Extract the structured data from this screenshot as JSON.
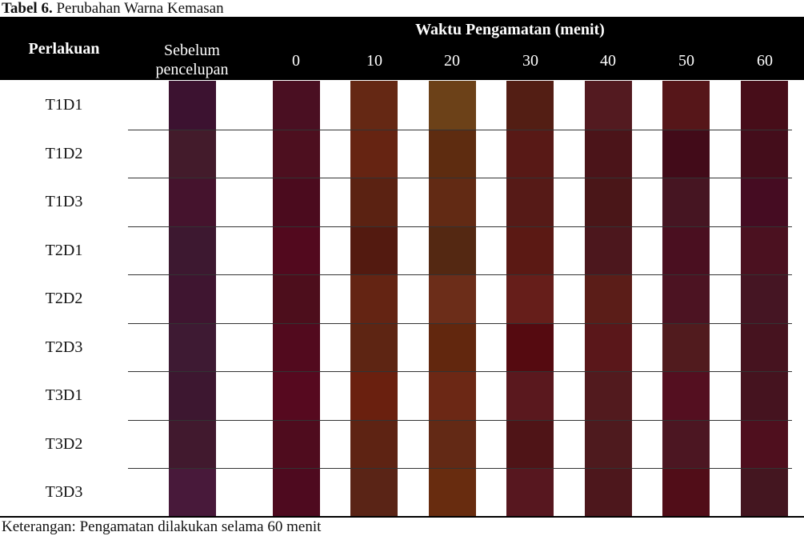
{
  "caption": {
    "label": "Tabel 6.",
    "text": " Perubahan Warna Kemasan"
  },
  "header": {
    "perlakuan": "Perlakuan",
    "waktu": "Waktu Pengamatan (menit)",
    "sebelum_line1": "Sebelum",
    "sebelum_line2": "pencelupan",
    "minutes": [
      "0",
      "10",
      "20",
      "30",
      "40",
      "50",
      "60"
    ]
  },
  "rows": [
    {
      "label": "T1D1",
      "colors": [
        "#3c1230",
        "#4a0f22",
        "#652814",
        "#6c4118",
        "#531e14",
        "#531a20",
        "#561619",
        "#470d19"
      ]
    },
    {
      "label": "T1D2",
      "colors": [
        "#431b2b",
        "#4d0f1f",
        "#662412",
        "#5e2c10",
        "#581916",
        "#4b1419",
        "#420b19",
        "#440d1b"
      ]
    },
    {
      "label": "T1D3",
      "colors": [
        "#45132d",
        "#4b0b1e",
        "#5b2212",
        "#622a14",
        "#561a17",
        "#4a1618",
        "#461522",
        "#450c22"
      ]
    },
    {
      "label": "T2D1",
      "colors": [
        "#3d1830",
        "#52091e",
        "#531a10",
        "#542812",
        "#5b1914",
        "#4c171d",
        "#4a0f20",
        "#4b1120"
      ]
    },
    {
      "label": "T2D2",
      "colors": [
        "#3f1530",
        "#4d0e1c",
        "#642413",
        "#6c2d19",
        "#661e1a",
        "#5b1d18",
        "#4c1322",
        "#451523"
      ]
    },
    {
      "label": "T2D3",
      "colors": [
        "#3e1a33",
        "#520a1e",
        "#5e2513",
        "#62270e",
        "#550a10",
        "#5a171a",
        "#511b1e",
        "#46131f"
      ]
    },
    {
      "label": "T3D1",
      "colors": [
        "#3d1730",
        "#56091f",
        "#6a200f",
        "#6c2815",
        "#5a181e",
        "#521a1e",
        "#540f20",
        "#45131f"
      ]
    },
    {
      "label": "T3D2",
      "colors": [
        "#41192e",
        "#4f0c1e",
        "#5e2313",
        "#632915",
        "#4f1417",
        "#4e1a1e",
        "#4c1622",
        "#4f0f1e"
      ]
    },
    {
      "label": "T3D3",
      "colors": [
        "#48193a",
        "#4e0a1f",
        "#5a2416",
        "#682c0f",
        "#57171f",
        "#4d171c",
        "#510d18",
        "#441620"
      ]
    }
  ],
  "note": "Keterangan: Pengamatan dilakukan selama 60 menit"
}
